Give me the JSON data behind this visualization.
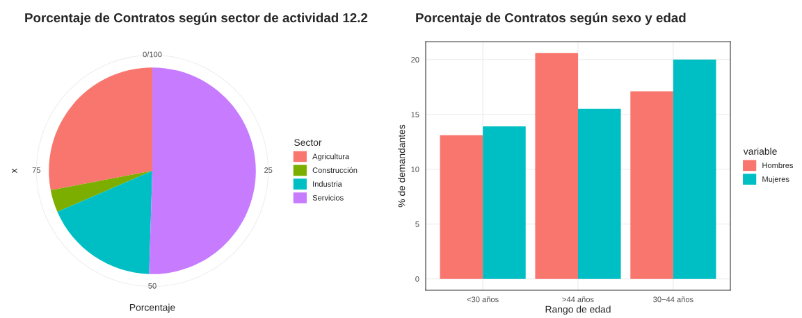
{
  "chart_data": [
    {
      "type": "pie",
      "title": "Porcentaje de Contratos según sector de actividad 12.2",
      "xlabel": "Porcentaje",
      "ylabel": "x",
      "legend_title": "Sector",
      "legend": "right",
      "categories": [
        "Agricultura",
        "Construcción",
        "Industria",
        "Servicios"
      ],
      "values": [
        28,
        3.5,
        18,
        50.5
      ],
      "colors": [
        "#f8766d",
        "#7cae00",
        "#00bfc4",
        "#c77cff"
      ],
      "annotations": [
        "0/100",
        "25",
        "50",
        "75"
      ]
    },
    {
      "type": "bar",
      "title": "Porcentaje de Contratos según sexo y edad",
      "xlabel": "Rango de edad",
      "ylabel": "% de demandantes",
      "legend_title": "variable",
      "legend": "right",
      "grid": true,
      "categories": [
        "<30 años",
        ">44 años",
        "30−44 años"
      ],
      "series": [
        {
          "name": "Hombres",
          "color": "#f8766d",
          "values": [
            13.1,
            20.6,
            17.1
          ]
        },
        {
          "name": "Mujeres",
          "color": "#00bfc4",
          "values": [
            13.9,
            15.5,
            20.0
          ]
        }
      ],
      "ylim": [
        -1.03,
        21.63
      ],
      "yticks": [
        0,
        5,
        10,
        15,
        20
      ]
    }
  ]
}
